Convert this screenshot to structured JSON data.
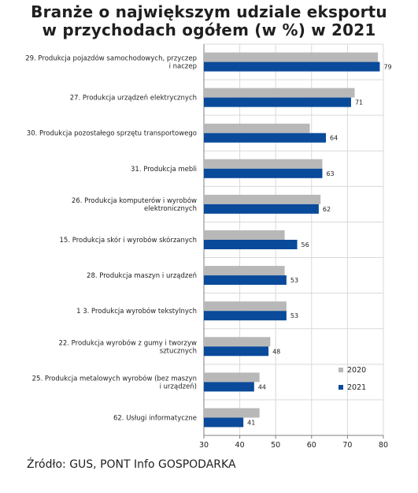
{
  "chart_data": {
    "type": "bar",
    "orientation": "horizontal",
    "title_lines": [
      "Branże o największym udziale eksportu",
      "w przychodach ogółem (w %) w 2021"
    ],
    "categories": [
      [
        "29. Produkcja pojazdów samochodowych, przyczep",
        "i naczep"
      ],
      [
        "27. Produkcja urządzeń elektrycznych"
      ],
      [
        "30. Produkcja pozostałego sprzętu transportowego"
      ],
      [
        "31. Produkcja mebli"
      ],
      [
        "26. Produkcja komputerów i wyrobów",
        "elektronicznych"
      ],
      [
        "15. Produkcja skór i wyrobów skórzanych"
      ],
      [
        "28. Produkcja maszyn i urządzeń"
      ],
      [
        "1 3. Produkcja wyrobów tekstylnych"
      ],
      [
        "22. Produkcja wyrobów z gumy i tworzyw",
        "sztucznych"
      ],
      [
        "25. Produkcja metalowych wyrobów (bez maszyn",
        "i urządzeń)"
      ],
      [
        "62. Usługi informatyczne"
      ]
    ],
    "series": [
      {
        "name": "2020",
        "color": "#b8b8b8",
        "values": [
          78.5,
          72,
          59.5,
          63,
          62.5,
          52.5,
          52.5,
          53,
          48.5,
          45.5,
          45.5
        ],
        "labels": []
      },
      {
        "name": "2021",
        "color": "#0a4a9a",
        "values": [
          79,
          71,
          64,
          63,
          62,
          56,
          53,
          53,
          48,
          44,
          41
        ],
        "labels": [
          "79",
          "71",
          "64",
          "63",
          "62",
          "56",
          "53",
          "53",
          "48",
          "44",
          "41"
        ]
      }
    ],
    "xlim": [
      30,
      80
    ],
    "xticks": [
      "30",
      "40",
      "50",
      "60",
      "70",
      "80"
    ],
    "grid": true,
    "legend_position": "bottom-right"
  },
  "source": "Źródło: GUS, PONT Info GOSPODARKA"
}
